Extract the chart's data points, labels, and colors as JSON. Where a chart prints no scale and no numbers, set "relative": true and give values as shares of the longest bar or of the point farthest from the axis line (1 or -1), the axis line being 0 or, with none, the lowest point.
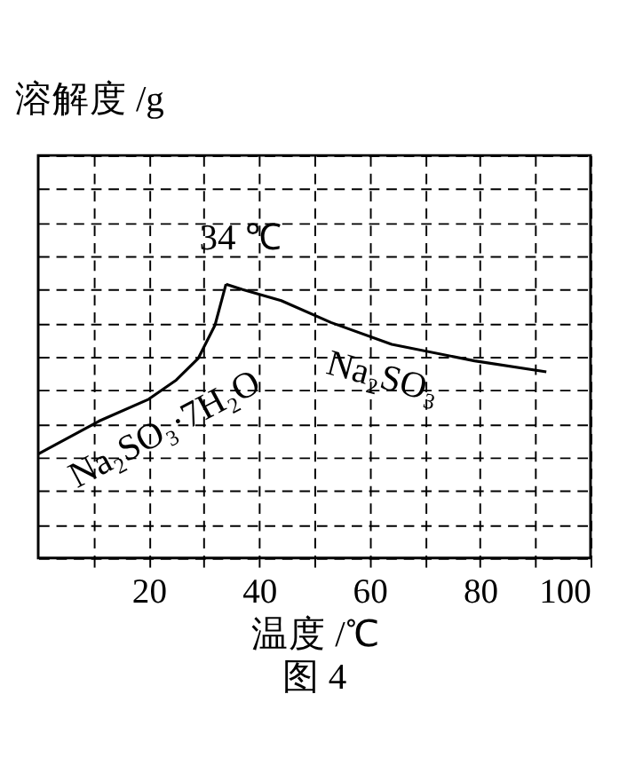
{
  "chart_data": {
    "type": "line",
    "relative": true,
    "ylabel": "溶解度 /g",
    "xlabel": "温度 /℃",
    "xlim": [
      0,
      100
    ],
    "xticks": [
      {
        "value": 10,
        "label": null
      },
      20,
      {
        "value": 30,
        "label": null
      },
      40,
      {
        "value": 50,
        "label": null
      },
      60,
      {
        "value": 70,
        "label": null
      },
      80,
      {
        "value": 90,
        "label": null
      },
      100
    ],
    "grid": true,
    "annotations": [
      {
        "text": "34 ℃",
        "x": 34,
        "y": 1
      },
      "图 4"
    ],
    "series": [
      {
        "name": "Na₂SO₃·7H₂O",
        "color": "#000000",
        "x": [
          0,
          11,
          20,
          25,
          29,
          32,
          34
        ],
        "values": [
          0.38,
          0.5,
          0.58,
          0.65,
          0.73,
          0.85,
          1
        ]
      },
      {
        "name": "Na₂SO₃",
        "color": "#000000",
        "x": [
          34,
          37,
          44,
          53,
          64,
          79,
          92
        ],
        "values": [
          1,
          0.98,
          0.94,
          0.86,
          0.78,
          0.72,
          0.68
        ]
      }
    ]
  }
}
